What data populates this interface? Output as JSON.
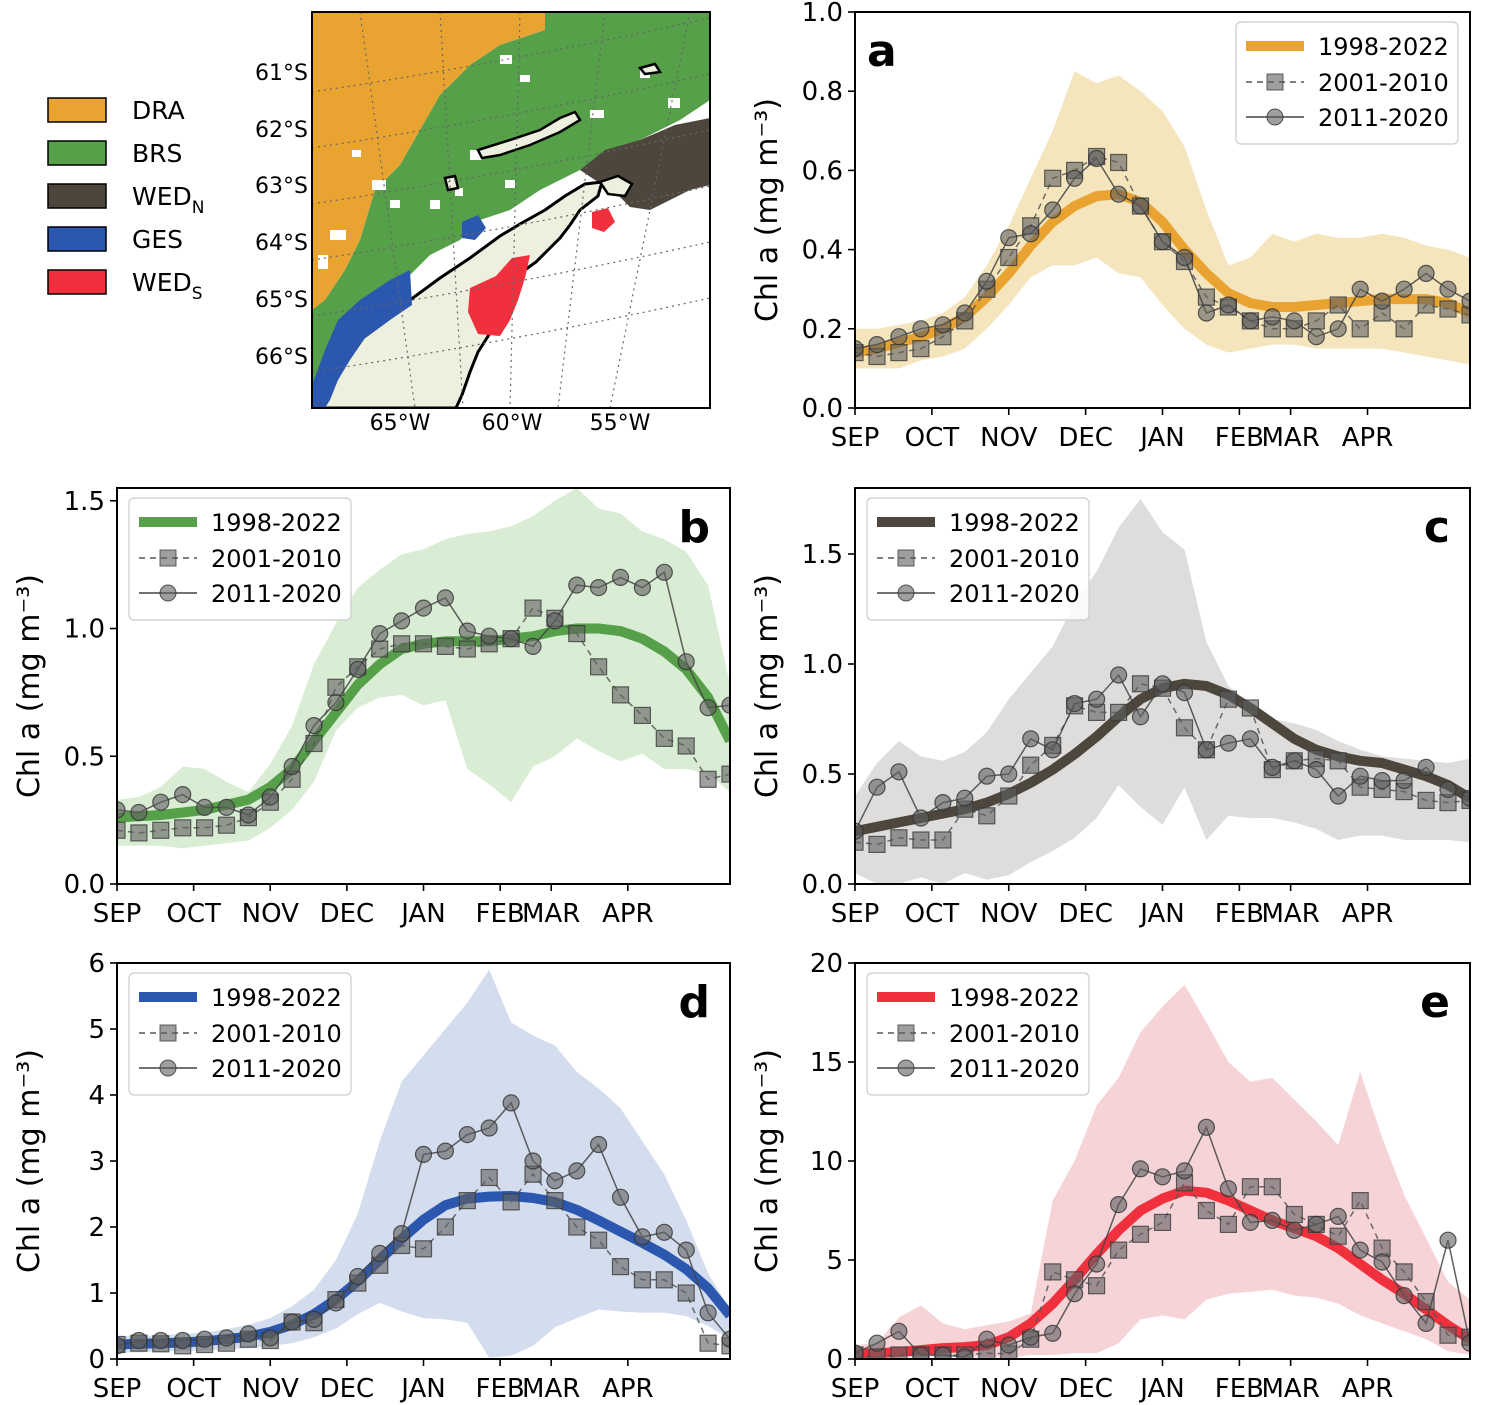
{
  "map": {
    "legend": [
      {
        "label": "DRA",
        "sub": "",
        "color": "#E9A331"
      },
      {
        "label": "BRS",
        "sub": "",
        "color": "#56A04A"
      },
      {
        "label": "WED",
        "sub": "N",
        "color": "#4D463D"
      },
      {
        "label": "GES",
        "sub": "",
        "color": "#2B58AE"
      },
      {
        "label": "WED",
        "sub": "S",
        "color": "#F0313D"
      }
    ],
    "lat_labels": [
      "61°S",
      "62°S",
      "63°S",
      "64°S",
      "65°S",
      "66°S"
    ],
    "lon_labels": [
      "65°W",
      "60°W",
      "55°W"
    ]
  },
  "chart_data": [
    {
      "id": "a",
      "type": "line",
      "panel_label": "a",
      "color": "#E9A331",
      "shade": "#F5E5BD",
      "ylabel": "Chl a (mg m⁻³)",
      "ylim": [
        0,
        1.0
      ],
      "yticks": [
        0.0,
        0.2,
        0.4,
        0.6,
        0.8,
        1.0
      ],
      "ytick_labels": [
        "0.0",
        "0.2",
        "0.4",
        "0.6",
        "0.8",
        "1.0"
      ],
      "xlim": [
        0,
        24
      ],
      "xtick_pos": [
        0,
        3,
        6,
        9,
        12,
        15,
        17,
        20
      ],
      "xtick_labels": [
        "SEP",
        "OCT",
        "NOV",
        "DEC",
        "JAN",
        "FEB",
        "MAR",
        "APR"
      ],
      "legend_pos": "top-right",
      "series": [
        {
          "name": "1998-2022",
          "style": "thick",
          "values": [
            0.14,
            0.15,
            0.165,
            0.18,
            0.2,
            0.23,
            0.28,
            0.34,
            0.41,
            0.47,
            0.51,
            0.535,
            0.54,
            0.52,
            0.47,
            0.4,
            0.34,
            0.29,
            0.265,
            0.255,
            0.255,
            0.26,
            0.265,
            0.27,
            0.275,
            0.275,
            0.275,
            0.265,
            0.24
          ]
        },
        {
          "name": "2001-2010",
          "style": "square-dashed",
          "values": [
            0.14,
            0.13,
            0.14,
            0.15,
            0.18,
            0.22,
            0.3,
            0.38,
            0.46,
            0.58,
            0.6,
            0.635,
            0.62,
            0.51,
            0.42,
            0.37,
            0.28,
            0.255,
            0.22,
            0.2,
            0.2,
            0.22,
            0.26,
            0.2,
            0.24,
            0.2,
            0.26,
            0.25,
            0.235
          ]
        },
        {
          "name": "2011-2020",
          "style": "circle-solid",
          "values": [
            0.15,
            0.16,
            0.18,
            0.2,
            0.21,
            0.24,
            0.32,
            0.43,
            0.44,
            0.5,
            0.58,
            0.63,
            0.54,
            0.51,
            0.42,
            0.38,
            0.24,
            0.26,
            0.22,
            0.23,
            0.22,
            0.18,
            0.2,
            0.3,
            0.27,
            0.3,
            0.34,
            0.3,
            0.27
          ]
        }
      ],
      "band_upper": [
        0.2,
        0.2,
        0.21,
        0.22,
        0.24,
        0.28,
        0.36,
        0.46,
        0.58,
        0.7,
        0.85,
        0.82,
        0.84,
        0.8,
        0.75,
        0.66,
        0.5,
        0.36,
        0.38,
        0.44,
        0.42,
        0.44,
        0.43,
        0.43,
        0.44,
        0.43,
        0.41,
        0.4,
        0.38
      ],
      "band_lower": [
        0.1,
        0.1,
        0.1,
        0.12,
        0.13,
        0.15,
        0.2,
        0.26,
        0.33,
        0.36,
        0.36,
        0.38,
        0.34,
        0.33,
        0.26,
        0.2,
        0.16,
        0.14,
        0.15,
        0.16,
        0.16,
        0.15,
        0.15,
        0.15,
        0.15,
        0.14,
        0.13,
        0.12,
        0.11
      ]
    },
    {
      "id": "b",
      "type": "line",
      "panel_label": "b",
      "color": "#56A04A",
      "shade": "#D9EDD4",
      "ylabel": "Chl a (mg m⁻³)",
      "ylim": [
        0,
        1.55
      ],
      "yticks": [
        0.0,
        0.5,
        1.0,
        1.5
      ],
      "ytick_labels": [
        "0.0",
        "0.5",
        "1.0",
        "1.5"
      ],
      "xlim": [
        0,
        24
      ],
      "xtick_pos": [
        0,
        3,
        6,
        9,
        12,
        15,
        17,
        20
      ],
      "xtick_labels": [
        "SEP",
        "OCT",
        "NOV",
        "DEC",
        "JAN",
        "FEB",
        "MAR",
        "APR"
      ],
      "legend_pos": "top-left",
      "series": [
        {
          "name": "1998-2022",
          "style": "thick",
          "values": [
            0.26,
            0.265,
            0.27,
            0.28,
            0.29,
            0.31,
            0.33,
            0.38,
            0.45,
            0.56,
            0.67,
            0.78,
            0.86,
            0.92,
            0.94,
            0.95,
            0.95,
            0.95,
            0.96,
            0.97,
            0.99,
            1.0,
            1.0,
            0.99,
            0.96,
            0.91,
            0.84,
            0.73,
            0.56
          ]
        },
        {
          "name": "2001-2010",
          "style": "square-dashed",
          "values": [
            0.21,
            0.2,
            0.21,
            0.22,
            0.22,
            0.23,
            0.26,
            0.32,
            0.41,
            0.55,
            0.77,
            0.85,
            0.92,
            0.94,
            0.94,
            0.93,
            0.92,
            0.94,
            0.96,
            1.08,
            1.04,
            0.98,
            0.85,
            0.74,
            0.66,
            0.57,
            0.54,
            0.41,
            0.43
          ]
        },
        {
          "name": "2011-2020",
          "style": "circle-solid",
          "values": [
            0.29,
            0.28,
            0.32,
            0.35,
            0.3,
            0.3,
            0.27,
            0.34,
            0.46,
            0.62,
            0.71,
            0.84,
            0.98,
            1.03,
            1.08,
            1.12,
            0.99,
            0.97,
            0.96,
            0.93,
            1.03,
            1.17,
            1.16,
            1.2,
            1.16,
            1.22,
            0.87,
            0.69,
            0.7
          ]
        }
      ],
      "band_upper": [
        0.33,
        0.34,
        0.38,
        0.46,
        0.45,
        0.4,
        0.36,
        0.47,
        0.62,
        0.86,
        1.02,
        1.16,
        1.23,
        1.29,
        1.31,
        1.35,
        1.37,
        1.38,
        1.4,
        1.44,
        1.5,
        1.55,
        1.47,
        1.45,
        1.38,
        1.35,
        1.3,
        1.17,
        0.78
      ],
      "band_lower": [
        0.15,
        0.15,
        0.15,
        0.14,
        0.15,
        0.16,
        0.17,
        0.22,
        0.29,
        0.4,
        0.6,
        0.69,
        0.73,
        0.74,
        0.7,
        0.72,
        0.45,
        0.39,
        0.32,
        0.46,
        0.5,
        0.57,
        0.52,
        0.48,
        0.51,
        0.45,
        0.45,
        0.43,
        0.36
      ]
    },
    {
      "id": "c",
      "type": "line",
      "panel_label": "c",
      "color": "#4D463D",
      "shade": "#DEDDDC",
      "ylabel": "Chl a (mg m⁻³)",
      "ylim": [
        0,
        1.8
      ],
      "yticks": [
        0.0,
        0.5,
        1.0,
        1.5
      ],
      "ytick_labels": [
        "0.0",
        "0.5",
        "1.0",
        "1.5"
      ],
      "xlim": [
        0,
        24
      ],
      "xtick_pos": [
        0,
        3,
        6,
        9,
        12,
        15,
        17,
        20
      ],
      "xtick_labels": [
        "SEP",
        "OCT",
        "NOV",
        "DEC",
        "JAN",
        "FEB",
        "MAR",
        "APR"
      ],
      "legend_pos": "top-left",
      "series": [
        {
          "name": "1998-2022",
          "style": "thick",
          "values": [
            0.24,
            0.26,
            0.28,
            0.3,
            0.32,
            0.34,
            0.37,
            0.41,
            0.46,
            0.52,
            0.59,
            0.67,
            0.76,
            0.84,
            0.89,
            0.91,
            0.9,
            0.86,
            0.8,
            0.73,
            0.66,
            0.61,
            0.58,
            0.56,
            0.55,
            0.52,
            0.49,
            0.45,
            0.39
          ]
        },
        {
          "name": "2001-2010",
          "style": "square-dashed",
          "values": [
            0.19,
            0.18,
            0.21,
            0.2,
            0.2,
            0.34,
            0.31,
            0.4,
            0.54,
            0.63,
            0.81,
            0.78,
            0.78,
            0.91,
            0.89,
            0.71,
            0.61,
            0.84,
            0.8,
            0.52,
            0.56,
            0.57,
            0.56,
            0.44,
            0.43,
            0.42,
            0.38,
            0.37,
            0.38
          ]
        },
        {
          "name": "2011-2020",
          "style": "circle-solid",
          "values": [
            0.24,
            0.44,
            0.51,
            0.3,
            0.37,
            0.39,
            0.49,
            0.5,
            0.66,
            0.61,
            0.82,
            0.84,
            0.95,
            0.76,
            0.91,
            0.87,
            0.61,
            0.64,
            0.66,
            0.53,
            0.56,
            0.52,
            0.4,
            0.49,
            0.47,
            0.47,
            0.53,
            0.43,
            0.39
          ]
        }
      ],
      "band_upper": [
        0.4,
        0.55,
        0.65,
        0.58,
        0.56,
        0.6,
        0.69,
        0.84,
        0.96,
        1.08,
        1.28,
        1.42,
        1.62,
        1.75,
        1.6,
        1.52,
        1.1,
        0.9,
        0.82,
        0.75,
        0.73,
        0.7,
        0.65,
        0.61,
        0.58,
        0.57,
        0.56,
        0.55,
        0.57
      ],
      "band_lower": [
        0.05,
        0.0,
        0.0,
        0.03,
        0.0,
        0.05,
        0.02,
        0.04,
        0.1,
        0.15,
        0.21,
        0.3,
        0.45,
        0.35,
        0.27,
        0.44,
        0.2,
        0.31,
        0.3,
        0.3,
        0.28,
        0.25,
        0.2,
        0.22,
        0.22,
        0.2,
        0.2,
        0.2,
        0.19
      ]
    },
    {
      "id": "d",
      "type": "line",
      "panel_label": "d",
      "color": "#2B58AE",
      "shade": "#D3DDEE",
      "ylabel": "Chl a (mg m⁻³)",
      "ylim": [
        0,
        6
      ],
      "yticks": [
        0,
        1,
        2,
        3,
        4,
        5,
        6
      ],
      "ytick_labels": [
        "0",
        "1",
        "2",
        "3",
        "4",
        "5",
        "6"
      ],
      "xlim": [
        0,
        24
      ],
      "xtick_pos": [
        0,
        3,
        6,
        9,
        12,
        15,
        17,
        20
      ],
      "xtick_labels": [
        "SEP",
        "OCT",
        "NOV",
        "DEC",
        "JAN",
        "FEB",
        "MAR",
        "APR"
      ],
      "legend_pos": "top-left",
      "series": [
        {
          "name": "1998-2022",
          "style": "thick",
          "values": [
            0.22,
            0.23,
            0.24,
            0.25,
            0.27,
            0.3,
            0.34,
            0.41,
            0.52,
            0.68,
            0.9,
            1.18,
            1.5,
            1.82,
            2.11,
            2.33,
            2.43,
            2.46,
            2.47,
            2.44,
            2.38,
            2.26,
            2.1,
            1.93,
            1.76,
            1.58,
            1.36,
            1.07,
            0.66
          ]
        },
        {
          "name": "2001-2010",
          "style": "square-dashed",
          "values": [
            0.22,
            0.24,
            0.23,
            0.2,
            0.22,
            0.24,
            0.3,
            0.28,
            0.56,
            0.55,
            0.9,
            1.15,
            1.42,
            1.72,
            1.67,
            2.0,
            2.4,
            2.75,
            2.38,
            2.8,
            2.4,
            2.0,
            1.8,
            1.4,
            1.2,
            1.2,
            1.0,
            0.24,
            0.2
          ]
        },
        {
          "name": "2011-2020",
          "style": "circle-solid",
          "values": [
            0.2,
            0.28,
            0.28,
            0.28,
            0.3,
            0.32,
            0.38,
            0.32,
            0.56,
            0.6,
            0.85,
            1.25,
            1.6,
            1.9,
            3.1,
            3.15,
            3.4,
            3.5,
            3.88,
            3.0,
            2.7,
            2.85,
            3.25,
            2.45,
            1.85,
            1.92,
            1.65,
            0.7,
            0.3
          ]
        }
      ],
      "band_upper": [
        0.35,
        0.35,
        0.36,
        0.38,
        0.4,
        0.45,
        0.52,
        0.62,
        0.8,
        1.05,
        1.5,
        2.2,
        3.3,
        4.2,
        4.6,
        5.0,
        5.4,
        5.9,
        5.1,
        4.9,
        4.75,
        4.35,
        4.1,
        3.8,
        3.3,
        2.8,
        2.1,
        1.3,
        0.75
      ],
      "band_lower": [
        0.1,
        0.1,
        0.12,
        0.12,
        0.13,
        0.15,
        0.16,
        0.2,
        0.24,
        0.33,
        0.46,
        0.68,
        0.85,
        0.72,
        0.62,
        0.6,
        0.55,
        0.02,
        0.05,
        0.2,
        0.48,
        0.62,
        0.75,
        0.72,
        0.7,
        0.7,
        0.65,
        0.5,
        0.3
      ]
    },
    {
      "id": "e",
      "type": "line",
      "panel_label": "e",
      "color": "#F0313D",
      "shade": "#F5D3D7",
      "ylabel": "Chl a (mg m⁻³)",
      "ylim": [
        0,
        20
      ],
      "yticks": [
        0,
        5,
        10,
        15,
        20
      ],
      "ytick_labels": [
        "0",
        "5",
        "10",
        "15",
        "20"
      ],
      "xlim": [
        0,
        24
      ],
      "xtick_pos": [
        0,
        3,
        6,
        9,
        12,
        15,
        17,
        20
      ],
      "xtick_labels": [
        "SEP",
        "OCT",
        "NOV",
        "DEC",
        "JAN",
        "FEB",
        "MAR",
        "APR"
      ],
      "legend_pos": "top-left",
      "series": [
        {
          "name": "1998-2022",
          "style": "thick",
          "values": [
            0.25,
            0.3,
            0.35,
            0.45,
            0.55,
            0.6,
            0.7,
            1.1,
            1.8,
            2.8,
            4.0,
            5.3,
            6.5,
            7.5,
            8.1,
            8.5,
            8.4,
            8.0,
            7.5,
            7.0,
            6.6,
            6.2,
            5.6,
            4.8,
            4.0,
            3.3,
            2.5,
            1.7,
            1.0
          ]
        },
        {
          "name": "2001-2010",
          "style": "square-dashed",
          "values": [
            0.2,
            0.1,
            0.2,
            0.2,
            0.2,
            0.2,
            0.3,
            0.25,
            1.0,
            4.4,
            4.0,
            3.7,
            5.5,
            6.3,
            6.9,
            8.9,
            7.5,
            6.8,
            8.7,
            8.7,
            7.3,
            6.8,
            6.2,
            8.0,
            5.6,
            4.4,
            2.9,
            1.2,
            1.1
          ]
        },
        {
          "name": "2011-2020",
          "style": "circle-solid",
          "values": [
            0.3,
            0.8,
            1.4,
            0.2,
            0.2,
            0.1,
            1.0,
            0.7,
            1.1,
            1.3,
            3.3,
            4.8,
            7.8,
            9.6,
            9.2,
            9.5,
            11.7,
            8.6,
            6.9,
            7.0,
            6.5,
            6.8,
            7.2,
            5.5,
            4.9,
            3.2,
            1.8,
            6.0,
            0.8
          ]
        }
      ],
      "band_upper": [
        0.7,
        0.8,
        2.1,
        2.7,
        1.8,
        1.5,
        1.7,
        1.9,
        2.3,
        8.0,
        10.0,
        12.8,
        14.2,
        16.5,
        17.8,
        18.9,
        17.0,
        15.0,
        14.0,
        14.2,
        13.1,
        12.0,
        10.8,
        14.5,
        11.2,
        8.3,
        6.1,
        3.9,
        3.0
      ],
      "band_lower": [
        0.1,
        0.1,
        0.15,
        0.1,
        0.15,
        0.1,
        0.1,
        0.05,
        0.2,
        0.2,
        0.3,
        0.3,
        0.8,
        2.0,
        2.2,
        2.0,
        3.0,
        3.3,
        3.4,
        3.5,
        3.2,
        3.1,
        2.8,
        2.2,
        1.8,
        1.4,
        1.0,
        0.4,
        0.2
      ]
    }
  ]
}
